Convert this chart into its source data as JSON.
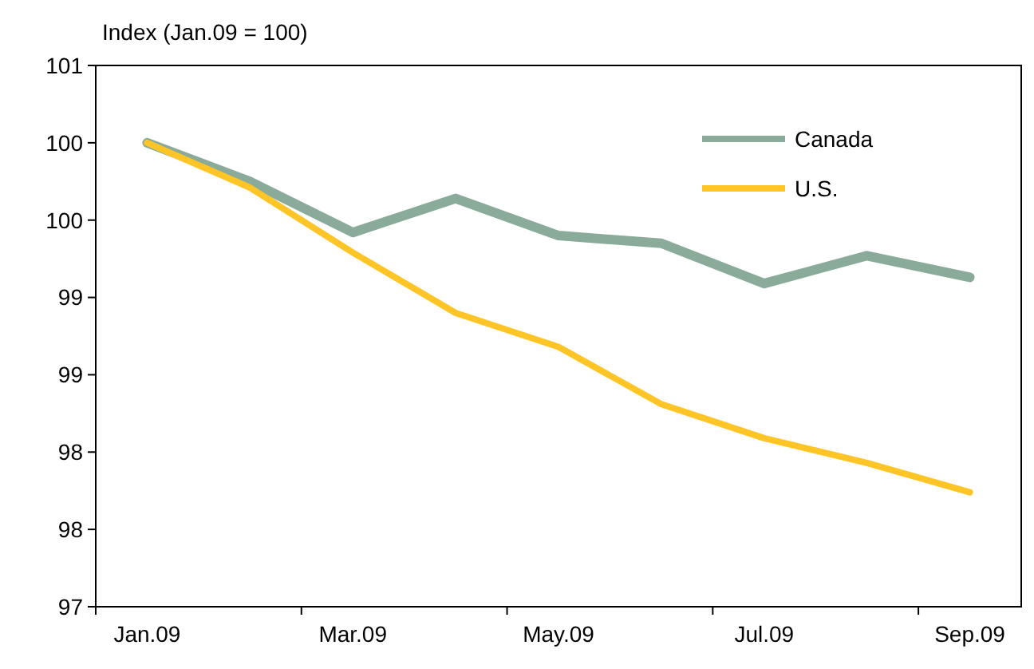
{
  "chart_data": {
    "type": "line",
    "ylabel": "Index (Jan.09 = 100)",
    "categories": [
      "Jan.09",
      null,
      "Mar.09",
      null,
      "May.09",
      null,
      "Jul.09",
      null,
      "Sep.09"
    ],
    "series": [
      {
        "name": "Canada",
        "color": "#8aab9a",
        "values": [
          100,
          99.75,
          99.42,
          99.64,
          99.4,
          99.35,
          99.09,
          99.27,
          99.13
        ]
      },
      {
        "name": "U.S.",
        "color": "#ffc425",
        "values": [
          100,
          99.71,
          99.29,
          98.9,
          98.68,
          98.31,
          98.09,
          97.93,
          97.74
        ]
      }
    ],
    "ylim": [
      97,
      100.5
    ],
    "yticks": [
      97,
      {
        "value": 97.5,
        "label": "98"
      },
      98,
      {
        "value": 98.5,
        "label": "99"
      },
      99,
      {
        "value": 99.5,
        "label": "100"
      },
      100,
      {
        "value": 100.5,
        "label": "101"
      }
    ],
    "grid": false,
    "legend": "top right",
    "marker": "none",
    "line_style": "solid"
  }
}
